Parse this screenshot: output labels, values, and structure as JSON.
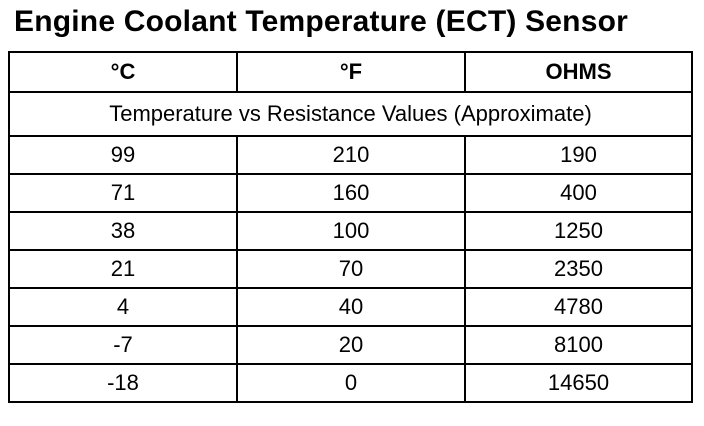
{
  "title": "Engine Coolant Temperature (ECT) Sensor",
  "table": {
    "headers": [
      "°C",
      "°F",
      "OHMS"
    ],
    "subtitle": "Temperature vs Resistance Values (Approximate)",
    "rows": [
      [
        "99",
        "210",
        "190"
      ],
      [
        "71",
        "160",
        "400"
      ],
      [
        "38",
        "100",
        "1250"
      ],
      [
        "21",
        "70",
        "2350"
      ],
      [
        "4",
        "40",
        "4780"
      ],
      [
        "-7",
        "20",
        "8100"
      ],
      [
        "-18",
        "0",
        "14650"
      ]
    ]
  }
}
